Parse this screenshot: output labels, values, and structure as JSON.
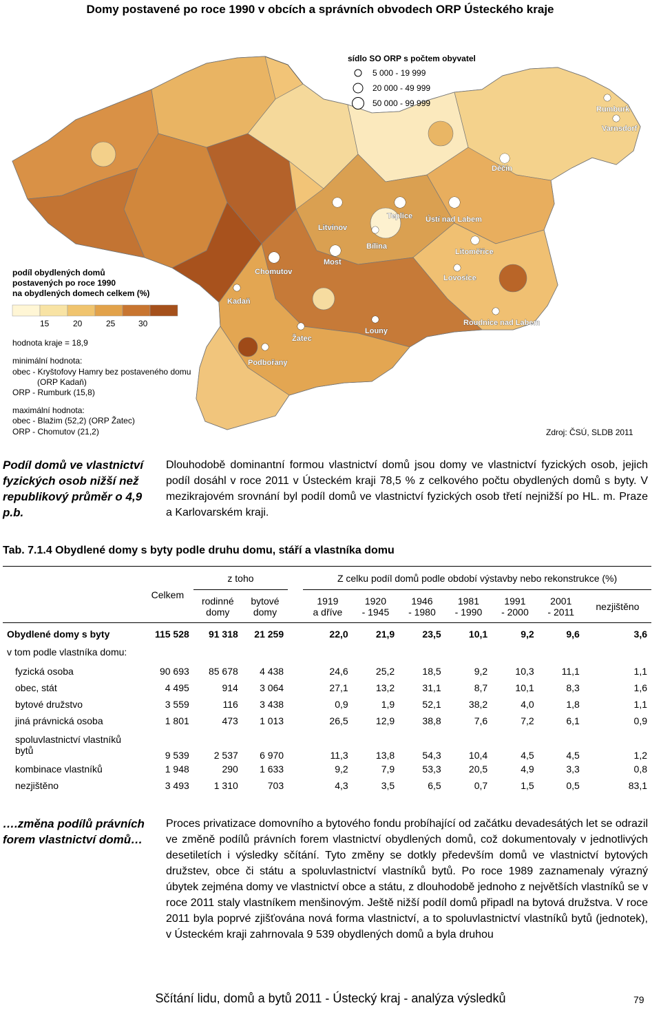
{
  "page": {
    "map_title": "Domy postavené po roce 1990 v obcích a správních obvodech ORP Ústeckého kraje",
    "footer": "Sčítání lidu, domů a bytů 2011 - Ústecký kraj - analýza výsledků",
    "page_number": "79"
  },
  "map": {
    "seat_legend_title": "sídlo SO ORP s počtem obyvatel",
    "seat_legend": [
      "5 000 - 19 999",
      "20 000 - 49 999",
      "50 000 - 99 999"
    ],
    "legend_title_1": "podíl obydlených domů",
    "legend_title_2": "postavených po roce 1990",
    "legend_title_3": "na obydlených domech celkem (%)",
    "scale_labels": [
      "15",
      "20",
      "25",
      "30"
    ],
    "scale_colors": [
      "#fff6d5",
      "#f8e3a4",
      "#f0c46e",
      "#e2a24a",
      "#c87530",
      "#a5501b"
    ],
    "region_value": "hodnota kraje = 18,9",
    "min_title": "minimální hodnota:",
    "min_1": "obec - Kryštofovy Hamry bez postaveného domu",
    "min_2": "(ORP Kadaň)",
    "min_3": "ORP - Rumburk (15,8)",
    "max_title": "maximální hodnota:",
    "max_1": "obec - Blažim (52,2) (ORP Žatec)",
    "max_2": "ORP - Chomutov (21,2)",
    "source": "Zdroj: ČSÚ, SLDB 2011",
    "cities": [
      "Rumburk",
      "Varnsdorf",
      "Děčín",
      "Teplice",
      "Ústí nad Labem",
      "Litvínov",
      "Bílina",
      "Litoměřice",
      "Most",
      "Chomutov",
      "Lovosice",
      "Kadaň",
      "Roudnice nad Labem",
      "Louny",
      "Žatec",
      "Podbořany"
    ]
  },
  "section1": {
    "side_note": "Podíl domů ve vlastnictví fyzických osob nižší než republikový průměr o 4,9 p.b.",
    "paragraph": "Dlouhodobě dominantní formou vlastnictví domů jsou domy ve vlastnictví fyzických osob, jejich podíl dosáhl v roce 2011 v Ústeckém kraji 78,5 % z celkového počtu obydlených domů s byty. V mezikrajovém srovnání byl podíl domů ve vlastnictví fyzických osob třetí nejnižší po HL. m. Praze a Karlovarském kraji."
  },
  "table": {
    "caption": "Tab. 7.1.4 Obydlené domy s byty podle druhu domu, stáří a vlastníka domu",
    "h_celkem": "Celkem",
    "h_ztoho": "z toho",
    "h_zcelku": "Z celku podíl domů podle období výstavby nebo rekonstrukce (%)",
    "h_rodinne": [
      "rodinné",
      "domy"
    ],
    "h_bytove": [
      "bytové",
      "domy"
    ],
    "h_periods": [
      [
        "1919",
        "a dříve"
      ],
      [
        "1920",
        "- 1945"
      ],
      [
        "1946",
        "- 1980"
      ],
      [
        "1981",
        "- 1990"
      ],
      [
        "1991",
        "- 2000"
      ],
      [
        "2001",
        "- 2011"
      ]
    ],
    "h_nezjisteno": "nezjištěno",
    "total_label": "Obydlené domy s byty",
    "total_values": [
      "115 528",
      "91 318",
      "21 259",
      "22,0",
      "21,9",
      "23,5",
      "10,1",
      "9,2",
      "9,6",
      "3,6"
    ],
    "subhead": "v tom podle vlastníka domu:",
    "rows": [
      {
        "label": "fyzická osoba",
        "values": [
          "90 693",
          "85 678",
          "4 438",
          "24,6",
          "25,2",
          "18,5",
          "9,2",
          "10,3",
          "11,1",
          "1,1"
        ]
      },
      {
        "label": "obec, stát",
        "values": [
          "4 495",
          "914",
          "3 064",
          "27,1",
          "13,2",
          "31,1",
          "8,7",
          "10,1",
          "8,3",
          "1,6"
        ]
      },
      {
        "label": "bytové družstvo",
        "values": [
          "3 559",
          "116",
          "3 438",
          "0,9",
          "1,9",
          "52,1",
          "38,2",
          "4,0",
          "1,8",
          "1,1"
        ]
      },
      {
        "label": "jiná právnická osoba",
        "values": [
          "1 801",
          "473",
          "1 013",
          "26,5",
          "12,9",
          "38,8",
          "7,6",
          "7,2",
          "6,1",
          "0,9"
        ]
      },
      {
        "label": "spoluvlastnictví vlastníků bytů",
        "values": [
          "9 539",
          "2 537",
          "6 970",
          "11,3",
          "13,8",
          "54,3",
          "10,4",
          "4,5",
          "4,5",
          "1,2"
        ]
      },
      {
        "label": "kombinace vlastníků",
        "values": [
          "1 948",
          "290",
          "1 633",
          "9,2",
          "7,9",
          "53,3",
          "20,5",
          "4,9",
          "3,3",
          "0,8"
        ]
      },
      {
        "label": "nezjištěno",
        "values": [
          "3 493",
          "1 310",
          "703",
          "4,3",
          "3,5",
          "6,5",
          "0,7",
          "1,5",
          "0,5",
          "83,1"
        ]
      }
    ]
  },
  "section2": {
    "side_note": "….změna podílů právních forem vlastnictví domů…",
    "paragraph": "Proces privatizace domovního a bytového fondu probíhající od začátku devadesátých let se odrazil ve změně podílů právních forem vlastnictví obydlených domů, což dokumentovaly v jednotlivých desetiletích i výsledky sčítání. Tyto změny se dotkly především domů ve vlastnictví bytových družstev, obce či státu a spoluvlastnictví vlastníků bytů. Po roce 1989 zaznamenaly výrazný úbytek zejména domy ve vlastnictví obce a státu, z dlouhodobě jednoho z největších vlastníků se v roce 2011 staly vlastníkem menšinovým. Ještě nižší podíl domů připadl na bytová družstva. V roce 2011 byla poprvé zjišťována nová forma vlastnictví, a to spoluvlastnictví vlastníků bytů (jednotek), v Ústeckém kraji zahrnovala 9 539 obydlených domů a byla druhou"
  }
}
